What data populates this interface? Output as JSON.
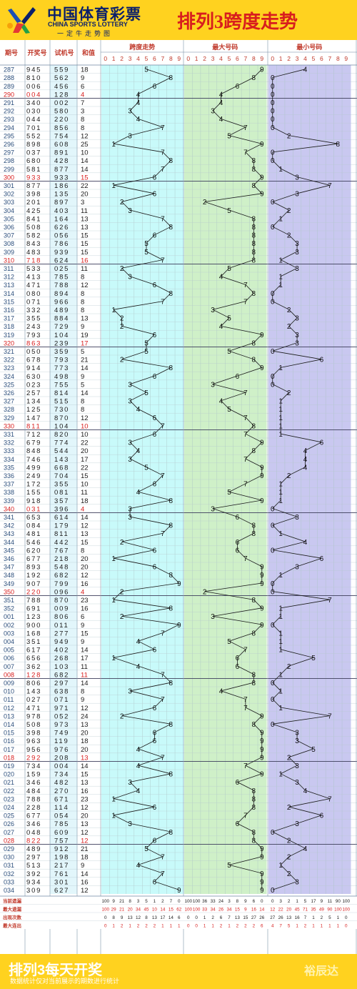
{
  "header": {
    "logo_cn": "中国体育彩票",
    "logo_en": "CHINA SPORTS LOTTERY",
    "logo_sub": "一定牛走势图",
    "title": "排列3跨度走势"
  },
  "table": {
    "col_headers": [
      "期号",
      "开奖号",
      "试机号",
      "和值"
    ],
    "section_headers": [
      "跨度走势",
      "最大号码",
      "最小号码"
    ],
    "digit_headers": [
      "0",
      "1",
      "2",
      "3",
      "4",
      "5",
      "6",
      "7",
      "8",
      "9"
    ]
  },
  "chart_data": {
    "type": "table",
    "rows": [
      {
        "issue": "287",
        "draw": "945",
        "test": "559",
        "sum": "18",
        "span": 5,
        "max": 9,
        "min": 4
      },
      {
        "issue": "288",
        "draw": "810",
        "test": "562",
        "sum": "9",
        "span": 8,
        "max": 8,
        "min": 0
      },
      {
        "issue": "289",
        "draw": "006",
        "test": "456",
        "sum": "6",
        "span": 6,
        "max": 6,
        "min": 0
      },
      {
        "issue": "290",
        "draw": "004",
        "test": "128",
        "sum": "4",
        "span": 4,
        "max": 4,
        "min": 0
      },
      {
        "issue": "291",
        "draw": "340",
        "test": "002",
        "sum": "7",
        "span": 4,
        "max": 4,
        "min": 0
      },
      {
        "issue": "292",
        "draw": "030",
        "test": "580",
        "sum": "3",
        "span": 3,
        "max": 3,
        "min": 0
      },
      {
        "issue": "293",
        "draw": "044",
        "test": "220",
        "sum": "8",
        "span": 4,
        "max": 4,
        "min": 0
      },
      {
        "issue": "294",
        "draw": "701",
        "test": "856",
        "sum": "8",
        "span": 7,
        "max": 7,
        "min": 0
      },
      {
        "issue": "295",
        "draw": "552",
        "test": "754",
        "sum": "12",
        "span": 3,
        "max": 5,
        "min": 2
      },
      {
        "issue": "296",
        "draw": "898",
        "test": "608",
        "sum": "25",
        "span": 1,
        "max": 9,
        "min": 8
      },
      {
        "issue": "297",
        "draw": "037",
        "test": "891",
        "sum": "10",
        "span": 7,
        "max": 7,
        "min": 0
      },
      {
        "issue": "298",
        "draw": "680",
        "test": "428",
        "sum": "14",
        "span": 8,
        "max": 8,
        "min": 0
      },
      {
        "issue": "299",
        "draw": "581",
        "test": "877",
        "sum": "14",
        "span": 7,
        "max": 8,
        "min": 1
      },
      {
        "issue": "300",
        "draw": "933",
        "test": "933",
        "sum": "15",
        "span": 6,
        "max": 9,
        "min": 3
      },
      {
        "issue": "301",
        "draw": "877",
        "test": "186",
        "sum": "22",
        "span": 1,
        "max": 8,
        "min": 7
      },
      {
        "issue": "302",
        "draw": "398",
        "test": "135",
        "sum": "20",
        "span": 6,
        "max": 9,
        "min": 3
      },
      {
        "issue": "303",
        "draw": "201",
        "test": "897",
        "sum": "3",
        "span": 2,
        "max": 2,
        "min": 0
      },
      {
        "issue": "304",
        "draw": "425",
        "test": "403",
        "sum": "11",
        "span": 3,
        "max": 5,
        "min": 2
      },
      {
        "issue": "305",
        "draw": "841",
        "test": "164",
        "sum": "13",
        "span": 7,
        "max": 8,
        "min": 1
      },
      {
        "issue": "306",
        "draw": "508",
        "test": "626",
        "sum": "13",
        "span": 8,
        "max": 8,
        "min": 0
      },
      {
        "issue": "307",
        "draw": "582",
        "test": "056",
        "sum": "15",
        "span": 6,
        "max": 8,
        "min": 2
      },
      {
        "issue": "308",
        "draw": "843",
        "test": "786",
        "sum": "15",
        "span": 5,
        "max": 8,
        "min": 3
      },
      {
        "issue": "309",
        "draw": "483",
        "test": "939",
        "sum": "15",
        "span": 5,
        "max": 8,
        "min": 3
      },
      {
        "issue": "310",
        "draw": "718",
        "test": "624",
        "sum": "16",
        "span": 7,
        "max": 8,
        "min": 1
      },
      {
        "issue": "311",
        "draw": "533",
        "test": "025",
        "sum": "11",
        "span": 2,
        "max": 5,
        "min": 3
      },
      {
        "issue": "312",
        "draw": "413",
        "test": "785",
        "sum": "8",
        "span": 3,
        "max": 4,
        "min": 1
      },
      {
        "issue": "313",
        "draw": "471",
        "test": "788",
        "sum": "12",
        "span": 6,
        "max": 7,
        "min": 1
      },
      {
        "issue": "314",
        "draw": "080",
        "test": "894",
        "sum": "8",
        "span": 8,
        "max": 8,
        "min": 0
      },
      {
        "issue": "315",
        "draw": "071",
        "test": "966",
        "sum": "8",
        "span": 7,
        "max": 7,
        "min": 0
      },
      {
        "issue": "316",
        "draw": "332",
        "test": "489",
        "sum": "8",
        "span": 1,
        "max": 3,
        "min": 2
      },
      {
        "issue": "317",
        "draw": "355",
        "test": "884",
        "sum": "13",
        "span": 2,
        "max": 5,
        "min": 3
      },
      {
        "issue": "318",
        "draw": "243",
        "test": "729",
        "sum": "9",
        "span": 2,
        "max": 4,
        "min": 2
      },
      {
        "issue": "319",
        "draw": "793",
        "test": "104",
        "sum": "19",
        "span": 6,
        "max": 9,
        "min": 3
      },
      {
        "issue": "320",
        "draw": "863",
        "test": "239",
        "sum": "17",
        "span": 5,
        "max": 8,
        "min": 3
      },
      {
        "issue": "321",
        "draw": "050",
        "test": "359",
        "sum": "5",
        "span": 5,
        "max": 5,
        "min": 0
      },
      {
        "issue": "322",
        "draw": "678",
        "test": "793",
        "sum": "21",
        "span": 2,
        "max": 8,
        "min": 6
      },
      {
        "issue": "323",
        "draw": "914",
        "test": "773",
        "sum": "14",
        "span": 8,
        "max": 9,
        "min": 1
      },
      {
        "issue": "324",
        "draw": "630",
        "test": "498",
        "sum": "9",
        "span": 6,
        "max": 6,
        "min": 0
      },
      {
        "issue": "325",
        "draw": "023",
        "test": "755",
        "sum": "5",
        "span": 3,
        "max": 3,
        "min": 0
      },
      {
        "issue": "326",
        "draw": "257",
        "test": "814",
        "sum": "14",
        "span": 5,
        "max": 7,
        "min": 2
      },
      {
        "issue": "327",
        "draw": "134",
        "test": "515",
        "sum": "8",
        "span": 3,
        "max": 4,
        "min": 1
      },
      {
        "issue": "328",
        "draw": "125",
        "test": "730",
        "sum": "8",
        "span": 4,
        "max": 5,
        "min": 1
      },
      {
        "issue": "329",
        "draw": "147",
        "test": "870",
        "sum": "12",
        "span": 6,
        "max": 7,
        "min": 1
      },
      {
        "issue": "330",
        "draw": "811",
        "test": "104",
        "sum": "10",
        "span": 7,
        "max": 8,
        "min": 1
      },
      {
        "issue": "331",
        "draw": "712",
        "test": "820",
        "sum": "10",
        "span": 6,
        "max": 7,
        "min": 1
      },
      {
        "issue": "332",
        "draw": "679",
        "test": "774",
        "sum": "22",
        "span": 3,
        "max": 9,
        "min": 6
      },
      {
        "issue": "333",
        "draw": "848",
        "test": "544",
        "sum": "20",
        "span": 4,
        "max": 8,
        "min": 4
      },
      {
        "issue": "334",
        "draw": "746",
        "test": "143",
        "sum": "17",
        "span": 3,
        "max": 7,
        "min": 4
      },
      {
        "issue": "335",
        "draw": "499",
        "test": "668",
        "sum": "22",
        "span": 5,
        "max": 9,
        "min": 4
      },
      {
        "issue": "336",
        "draw": "249",
        "test": "704",
        "sum": "15",
        "span": 7,
        "max": 9,
        "min": 2
      },
      {
        "issue": "337",
        "draw": "172",
        "test": "355",
        "sum": "10",
        "span": 6,
        "max": 7,
        "min": 1
      },
      {
        "issue": "338",
        "draw": "155",
        "test": "081",
        "sum": "11",
        "span": 4,
        "max": 5,
        "min": 1
      },
      {
        "issue": "339",
        "draw": "918",
        "test": "357",
        "sum": "18",
        "span": 8,
        "max": 9,
        "min": 1
      },
      {
        "issue": "340",
        "draw": "031",
        "test": "396",
        "sum": "4",
        "span": 3,
        "max": 3,
        "min": 0
      },
      {
        "issue": "341",
        "draw": "653",
        "test": "614",
        "sum": "14",
        "span": 3,
        "max": 6,
        "min": 3
      },
      {
        "issue": "342",
        "draw": "084",
        "test": "179",
        "sum": "12",
        "span": 8,
        "max": 8,
        "min": 0
      },
      {
        "issue": "343",
        "draw": "481",
        "test": "811",
        "sum": "13",
        "span": 7,
        "max": 8,
        "min": 1
      },
      {
        "issue": "344",
        "draw": "546",
        "test": "442",
        "sum": "15",
        "span": 2,
        "max": 6,
        "min": 4
      },
      {
        "issue": "345",
        "draw": "620",
        "test": "767",
        "sum": "8",
        "span": 6,
        "max": 6,
        "min": 0
      },
      {
        "issue": "346",
        "draw": "677",
        "test": "218",
        "sum": "20",
        "span": 1,
        "max": 7,
        "min": 6
      },
      {
        "issue": "347",
        "draw": "893",
        "test": "548",
        "sum": "20",
        "span": 6,
        "max": 9,
        "min": 3
      },
      {
        "issue": "348",
        "draw": "192",
        "test": "682",
        "sum": "12",
        "span": 8,
        "max": 9,
        "min": 1
      },
      {
        "issue": "349",
        "draw": "907",
        "test": "799",
        "sum": "16",
        "span": 9,
        "max": 9,
        "min": 0
      },
      {
        "issue": "350",
        "draw": "220",
        "test": "096",
        "sum": "4",
        "span": 2,
        "max": 2,
        "min": 0
      },
      {
        "issue": "351",
        "draw": "788",
        "test": "870",
        "sum": "23",
        "span": 1,
        "max": 8,
        "min": 7
      },
      {
        "issue": "352",
        "draw": "691",
        "test": "009",
        "sum": "16",
        "span": 8,
        "max": 9,
        "min": 1
      },
      {
        "issue": "001",
        "draw": "123",
        "test": "806",
        "sum": "6",
        "span": 2,
        "max": 3,
        "min": 1
      },
      {
        "issue": "002",
        "draw": "900",
        "test": "011",
        "sum": "9",
        "span": 9,
        "max": 9,
        "min": 0
      },
      {
        "issue": "003",
        "draw": "168",
        "test": "277",
        "sum": "15",
        "span": 7,
        "max": 8,
        "min": 1
      },
      {
        "issue": "004",
        "draw": "351",
        "test": "949",
        "sum": "9",
        "span": 4,
        "max": 5,
        "min": 1
      },
      {
        "issue": "005",
        "draw": "617",
        "test": "402",
        "sum": "14",
        "span": 6,
        "max": 7,
        "min": 1
      },
      {
        "issue": "006",
        "draw": "656",
        "test": "268",
        "sum": "17",
        "span": 1,
        "max": 6,
        "min": 5
      },
      {
        "issue": "007",
        "draw": "362",
        "test": "103",
        "sum": "11",
        "span": 4,
        "max": 6,
        "min": 2
      },
      {
        "issue": "008",
        "draw": "128",
        "test": "682",
        "sum": "11",
        "span": 7,
        "max": 8,
        "min": 1
      },
      {
        "issue": "009",
        "draw": "806",
        "test": "297",
        "sum": "14",
        "span": 8,
        "max": 8,
        "min": 0
      },
      {
        "issue": "010",
        "draw": "143",
        "test": "638",
        "sum": "8",
        "span": 3,
        "max": 4,
        "min": 1
      },
      {
        "issue": "011",
        "draw": "027",
        "test": "071",
        "sum": "9",
        "span": 7,
        "max": 7,
        "min": 0
      },
      {
        "issue": "012",
        "draw": "471",
        "test": "971",
        "sum": "12",
        "span": 6,
        "max": 7,
        "min": 1
      },
      {
        "issue": "013",
        "draw": "978",
        "test": "052",
        "sum": "24",
        "span": 2,
        "max": 9,
        "min": 7
      },
      {
        "issue": "014",
        "draw": "508",
        "test": "973",
        "sum": "13",
        "span": 8,
        "max": 8,
        "min": 0
      },
      {
        "issue": "015",
        "draw": "398",
        "test": "749",
        "sum": "20",
        "span": 6,
        "max": 9,
        "min": 3
      },
      {
        "issue": "016",
        "draw": "963",
        "test": "119",
        "sum": "18",
        "span": 6,
        "max": 9,
        "min": 3
      },
      {
        "issue": "017",
        "draw": "956",
        "test": "976",
        "sum": "20",
        "span": 4,
        "max": 9,
        "min": 5
      },
      {
        "issue": "018",
        "draw": "292",
        "test": "208",
        "sum": "13",
        "span": 7,
        "max": 9,
        "min": 2
      },
      {
        "issue": "019",
        "draw": "734",
        "test": "004",
        "sum": "14",
        "span": 4,
        "max": 7,
        "min": 3
      },
      {
        "issue": "020",
        "draw": "159",
        "test": "734",
        "sum": "15",
        "span": 8,
        "max": 9,
        "min": 1
      },
      {
        "issue": "021",
        "draw": "346",
        "test": "482",
        "sum": "13",
        "span": 3,
        "max": 6,
        "min": 3
      },
      {
        "issue": "022",
        "draw": "484",
        "test": "270",
        "sum": "16",
        "span": 4,
        "max": 8,
        "min": 4
      },
      {
        "issue": "023",
        "draw": "788",
        "test": "671",
        "sum": "23",
        "span": 1,
        "max": 8,
        "min": 7
      },
      {
        "issue": "024",
        "draw": "228",
        "test": "114",
        "sum": "12",
        "span": 6,
        "max": 8,
        "min": 2
      },
      {
        "issue": "025",
        "draw": "677",
        "test": "054",
        "sum": "20",
        "span": 1,
        "max": 7,
        "min": 6
      },
      {
        "issue": "026",
        "draw": "346",
        "test": "785",
        "sum": "13",
        "span": 3,
        "max": 6,
        "min": 3
      },
      {
        "issue": "027",
        "draw": "048",
        "test": "609",
        "sum": "12",
        "span": 8,
        "max": 8,
        "min": 0
      },
      {
        "issue": "028",
        "draw": "822",
        "test": "757",
        "sum": "12",
        "span": 6,
        "max": 8,
        "min": 2
      },
      {
        "issue": "029",
        "draw": "489",
        "test": "912",
        "sum": "21",
        "span": 5,
        "max": 9,
        "min": 4
      },
      {
        "issue": "030",
        "draw": "297",
        "test": "198",
        "sum": "18",
        "span": 7,
        "max": 9,
        "min": 2
      },
      {
        "issue": "031",
        "draw": "513",
        "test": "217",
        "sum": "9",
        "span": 4,
        "max": 5,
        "min": 1
      },
      {
        "issue": "032",
        "draw": "392",
        "test": "761",
        "sum": "14",
        "span": 7,
        "max": 9,
        "min": 2
      },
      {
        "issue": "033",
        "draw": "934",
        "test": "301",
        "sum": "16",
        "span": 6,
        "max": 9,
        "min": 3
      },
      {
        "issue": "034",
        "draw": "309",
        "test": "627",
        "sum": "12",
        "span": 9,
        "max": 9,
        "min": 0
      }
    ],
    "stats": [
      {
        "label": "当前遗漏",
        "values": [
          100,
          9,
          21,
          8,
          3,
          5,
          1,
          2,
          7,
          0,
          100,
          100,
          36,
          33,
          24,
          3,
          8,
          9,
          6,
          0,
          0,
          3,
          2,
          1,
          5,
          17,
          9,
          11,
          90,
          100
        ]
      },
      {
        "label": "最大遗漏",
        "values": [
          100,
          29,
          21,
          20,
          34,
          45,
          10,
          14,
          15,
          62,
          100,
          100,
          33,
          34,
          26,
          34,
          15,
          9,
          16,
          14,
          12,
          22,
          20,
          45,
          71,
          35,
          49,
          90,
          100,
          100
        ]
      },
      {
        "label": "出现次数",
        "values": [
          0,
          8,
          9,
          13,
          12,
          8,
          13,
          17,
          14,
          6,
          0,
          0,
          1,
          2,
          6,
          7,
          13,
          15,
          27,
          26,
          27,
          26,
          13,
          16,
          7,
          1,
          2,
          5,
          1,
          0
        ]
      },
      {
        "label": "最大连出",
        "values": [
          0,
          1,
          2,
          1,
          2,
          2,
          2,
          1,
          1,
          1,
          0,
          0,
          1,
          1,
          2,
          1,
          2,
          2,
          2,
          6,
          4,
          7,
          5,
          1,
          2,
          1,
          1,
          1,
          1,
          0
        ]
      }
    ]
  },
  "footer": {
    "title": "排列3每天开奖",
    "note": "数据统计仅对当前展示的期数进行统计",
    "brand": "裕辰达"
  }
}
